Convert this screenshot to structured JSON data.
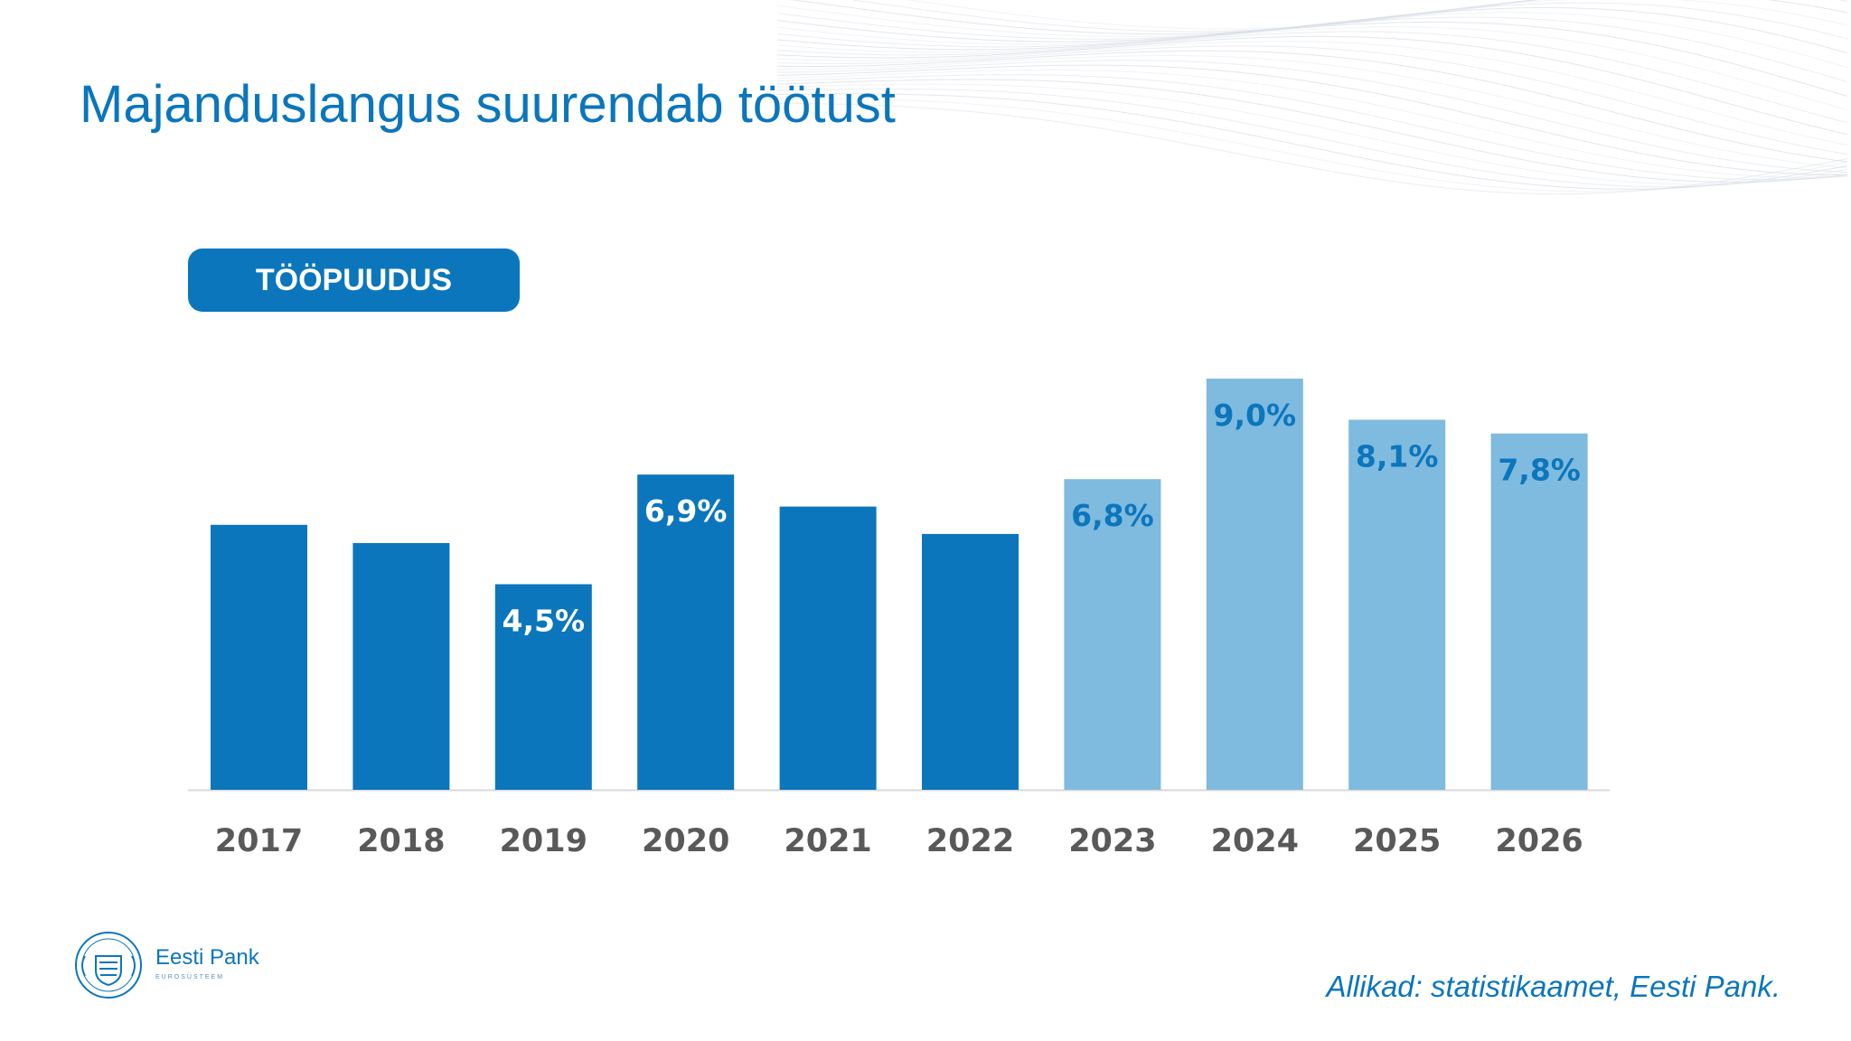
{
  "slide": {
    "title": "Majanduslangus suurendab töötust",
    "badge": "TÖÖPUUDUS",
    "source": "Allikad: statistikaamet, Eesti Pank."
  },
  "logo": {
    "name": "Eesti Pank",
    "subtitle": "EUROSÜSTEEM",
    "seal_text": "EESTI PANK"
  },
  "colors": {
    "accent": "#0b76bc",
    "bar_actual": "#0b76bc",
    "bar_forecast": "#7fbadf",
    "tick_text": "#595959",
    "axis_line": "#d9d9d9"
  },
  "chart_data": {
    "type": "bar",
    "categories": [
      "2017",
      "2018",
      "2019",
      "2020",
      "2021",
      "2022",
      "2023",
      "2024",
      "2025",
      "2026"
    ],
    "values": [
      5.8,
      5.4,
      4.5,
      6.9,
      6.2,
      5.6,
      6.8,
      9.0,
      8.1,
      7.8
    ],
    "labels": [
      "",
      "",
      "4,5%",
      "6,9%",
      "",
      "",
      "6,8%",
      "9,0%",
      "8,1%",
      "7,8%"
    ],
    "forecast_from": "2023",
    "ylim": [
      0,
      9.0
    ],
    "title": "TÖÖPUUDUS",
    "xlabel": "",
    "ylabel": "",
    "grid": false,
    "legend": false
  }
}
